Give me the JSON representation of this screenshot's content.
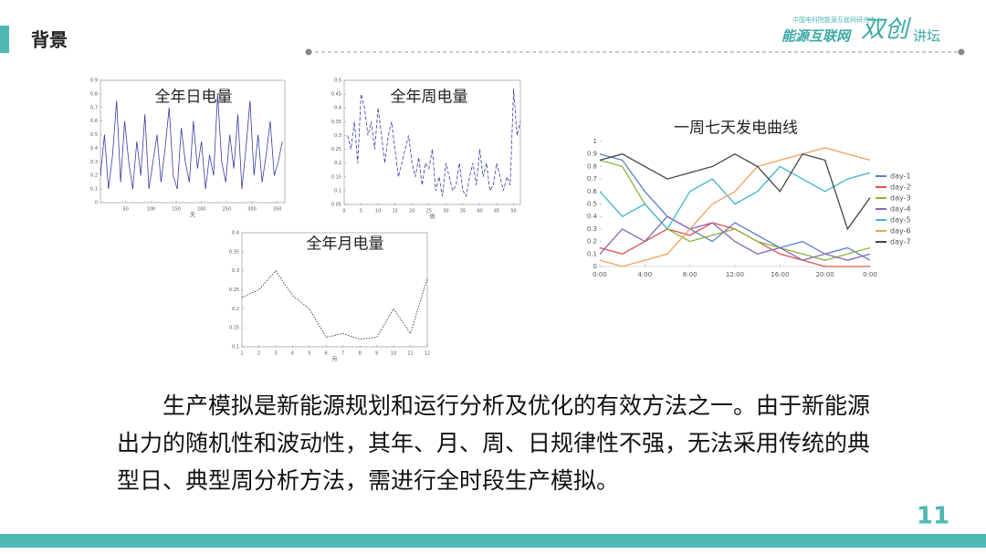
{
  "header": {
    "title": "背景",
    "logo_top": "中国电科院能源互联网研究中心",
    "logo_main": "能源互联网",
    "logo_big": "双创",
    "logo_tail": "讲坛"
  },
  "chart_data": [
    {
      "type": "line",
      "title": "全年日电量",
      "x_label": "天",
      "color": "#3a3aa8",
      "line_style": "solid",
      "x": [
        0,
        8,
        16,
        24,
        32,
        40,
        48,
        56,
        64,
        72,
        80,
        88,
        96,
        104,
        112,
        120,
        128,
        136,
        144,
        152,
        160,
        168,
        176,
        184,
        192,
        200,
        208,
        216,
        224,
        232,
        240,
        248,
        256,
        264,
        272,
        280,
        288,
        296,
        304,
        312,
        320,
        328,
        336,
        344,
        352,
        360
      ],
      "values": [
        0.2,
        0.5,
        0.1,
        0.35,
        0.75,
        0.15,
        0.6,
        0.3,
        0.1,
        0.45,
        0.2,
        0.65,
        0.1,
        0.3,
        0.5,
        0.15,
        0.4,
        0.7,
        0.2,
        0.1,
        0.55,
        0.3,
        0.15,
        0.6,
        0.25,
        0.45,
        0.1,
        0.35,
        0.2,
        0.8,
        0.3,
        0.15,
        0.5,
        0.25,
        0.65,
        0.1,
        0.4,
        0.75,
        0.2,
        0.5,
        0.15,
        0.35,
        0.6,
        0.2,
        0.3,
        0.45
      ],
      "xlim": [
        0,
        365
      ],
      "xticks": [
        50,
        100,
        150,
        200,
        250,
        300,
        350
      ],
      "ylim": [
        0,
        0.9
      ],
      "yticks": [
        0,
        0.1,
        0.2,
        0.3,
        0.4,
        0.5,
        0.6,
        0.7,
        0.8,
        0.9
      ]
    },
    {
      "type": "line",
      "title": "全年周电量",
      "x_label": "周",
      "color": "#3a3aa8",
      "line_style": "dashed",
      "x": [
        1,
        2,
        3,
        4,
        5,
        6,
        7,
        8,
        9,
        10,
        11,
        12,
        13,
        14,
        15,
        16,
        17,
        18,
        19,
        20,
        21,
        22,
        23,
        24,
        25,
        26,
        27,
        28,
        29,
        30,
        31,
        32,
        33,
        34,
        35,
        36,
        37,
        38,
        39,
        40,
        41,
        42,
        43,
        44,
        45,
        46,
        47,
        48,
        49,
        50,
        51,
        52
      ],
      "values": [
        0.3,
        0.25,
        0.35,
        0.2,
        0.45,
        0.4,
        0.3,
        0.35,
        0.25,
        0.4,
        0.3,
        0.2,
        0.3,
        0.35,
        0.25,
        0.15,
        0.2,
        0.25,
        0.3,
        0.2,
        0.15,
        0.22,
        0.12,
        0.2,
        0.18,
        0.25,
        0.1,
        0.15,
        0.08,
        0.2,
        0.15,
        0.1,
        0.12,
        0.2,
        0.1,
        0.08,
        0.15,
        0.2,
        0.12,
        0.25,
        0.15,
        0.2,
        0.1,
        0.12,
        0.2,
        0.15,
        0.1,
        0.15,
        0.12,
        0.47,
        0.3,
        0.35
      ],
      "xlim": [
        0,
        52
      ],
      "xticks": [
        0,
        5,
        10,
        15,
        20,
        25,
        30,
        35,
        40,
        45,
        50
      ],
      "ylim": [
        0.05,
        0.5
      ],
      "yticks": [
        0.05,
        0.1,
        0.15,
        0.2,
        0.25,
        0.3,
        0.35,
        0.4,
        0.45,
        0.5
      ]
    },
    {
      "type": "line",
      "title": "全年月电量",
      "x_label": "月",
      "color": "#222222",
      "line_style": "dotted",
      "x": [
        1,
        2,
        3,
        4,
        5,
        6,
        7,
        8,
        9,
        10,
        11,
        12
      ],
      "values": [
        0.23,
        0.25,
        0.3,
        0.235,
        0.2,
        0.125,
        0.135,
        0.12,
        0.125,
        0.2,
        0.135,
        0.28
      ],
      "xlim": [
        1,
        12
      ],
      "xticks": [
        1,
        2,
        3,
        4,
        5,
        6,
        7,
        8,
        9,
        10,
        11,
        12
      ],
      "ylim": [
        0.1,
        0.4
      ],
      "yticks": [
        0.1,
        0.15,
        0.2,
        0.25,
        0.3,
        0.35,
        0.4
      ]
    },
    {
      "type": "multiline",
      "title": "一周七天发电曲线",
      "legend": "right",
      "x": [
        0,
        2,
        4,
        6,
        8,
        10,
        12,
        14,
        16,
        18,
        20,
        22,
        24
      ],
      "series": [
        {
          "name": "day-1",
          "color": "#5b7fc9",
          "values": [
            0.9,
            0.85,
            0.6,
            0.4,
            0.3,
            0.2,
            0.35,
            0.25,
            0.15,
            0.2,
            0.1,
            0.15,
            0.05
          ]
        },
        {
          "name": "day-2",
          "color": "#d9534f",
          "values": [
            0.15,
            0.1,
            0.2,
            0.3,
            0.25,
            0.35,
            0.3,
            0.2,
            0.1,
            0.05,
            0,
            0,
            0
          ]
        },
        {
          "name": "day-3",
          "color": "#8db33c",
          "values": [
            0.85,
            0.8,
            0.5,
            0.3,
            0.2,
            0.25,
            0.3,
            0.2,
            0.15,
            0.1,
            0.05,
            0.1,
            0.15
          ]
        },
        {
          "name": "day-4",
          "color": "#8a63b5",
          "values": [
            0.1,
            0.3,
            0.2,
            0.4,
            0.3,
            0.35,
            0.2,
            0.1,
            0.15,
            0.05,
            0.1,
            0.05,
            0.1
          ]
        },
        {
          "name": "day-5",
          "color": "#3fb6c9",
          "values": [
            0.6,
            0.4,
            0.5,
            0.3,
            0.6,
            0.7,
            0.5,
            0.6,
            0.8,
            0.7,
            0.6,
            0.7,
            0.75
          ]
        },
        {
          "name": "day-6",
          "color": "#f0a35a",
          "values": [
            0.05,
            0,
            0.05,
            0.1,
            0.3,
            0.5,
            0.6,
            0.8,
            0.85,
            0.9,
            0.95,
            0.9,
            0.85
          ]
        },
        {
          "name": "day-7",
          "color": "#444444",
          "values": [
            0.85,
            0.9,
            0.8,
            0.7,
            0.75,
            0.8,
            0.9,
            0.8,
            0.6,
            0.9,
            0.85,
            0.3,
            0.55
          ]
        }
      ],
      "xlim": [
        0,
        24
      ],
      "xticks": [
        {
          "value": 0,
          "label": "0:00"
        },
        {
          "value": 4,
          "label": "4:00"
        },
        {
          "value": 8,
          "label": "8:00"
        },
        {
          "value": 12,
          "label": "12:00"
        },
        {
          "value": 16,
          "label": "16:00"
        },
        {
          "value": 20,
          "label": "20:00"
        },
        {
          "value": 24,
          "label": "0:00"
        }
      ],
      "ylim": [
        0,
        1
      ],
      "yticks": [
        0,
        0.1,
        0.2,
        0.3,
        0.4,
        0.5,
        0.6,
        0.7,
        0.8,
        0.9,
        1
      ]
    }
  ],
  "body": {
    "paragraph": "生产模拟是新能源规划和运行分析及优化的有效方法之一。由于新能源出力的随机性和波动性，其年、月、周、日规律性不强，无法采用传统的典型日、典型周分析方法，需进行全时段生产模拟。"
  },
  "page_number": 11
}
